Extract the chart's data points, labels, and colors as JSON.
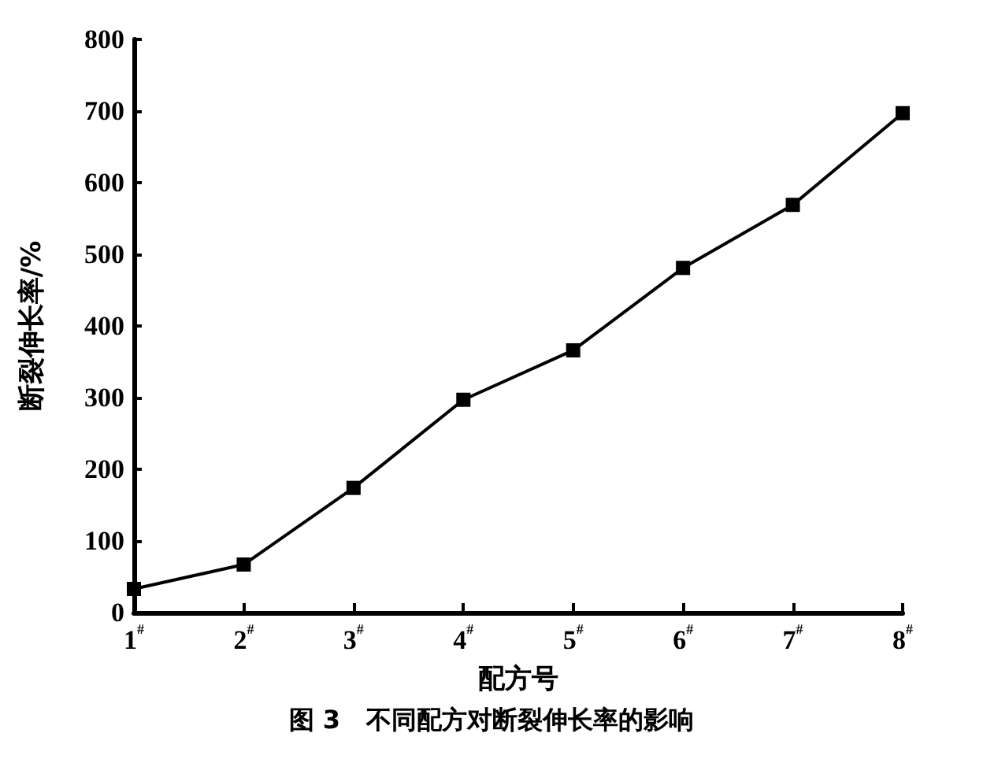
{
  "chart_data": {
    "type": "line",
    "title": "图 3   不同配方对断裂伸长率的影响",
    "xlabel": "配方号",
    "ylabel": "断裂伸长率/%",
    "categories": [
      "1$^{#}$",
      "2$^{#}$",
      "3$^{#}$",
      "4$^{#}$",
      "5$^{#}$",
      "6$^{#}$",
      "7$^{#}$",
      "8$^{#}$"
    ],
    "series": [
      {
        "color": "#000000",
        "values": [
          33,
          67,
          174,
          297,
          366,
          481,
          569,
          697
        ]
      }
    ],
    "ylim": [
      0,
      800
    ],
    "yticks": [
      0,
      100,
      200,
      300,
      400,
      500,
      600,
      700,
      800
    ],
    "marker": "square",
    "line_style": "solid"
  }
}
